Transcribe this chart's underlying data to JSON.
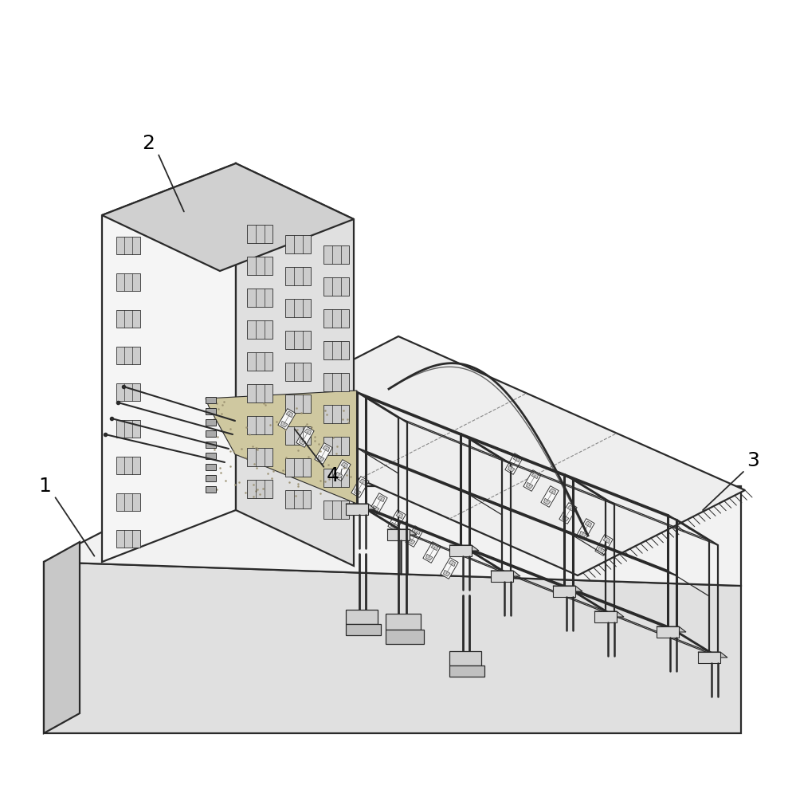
{
  "bg_color": "#ffffff",
  "line_color": "#2a2a2a",
  "fill_light": "#f2f2f2",
  "fill_mid": "#e0e0e0",
  "fill_dark": "#c8c8c8",
  "fill_soil": "#d0c8a0",
  "label_1": "1",
  "label_2": "2",
  "label_3": "3",
  "label_4": "4",
  "lw_main": 1.6,
  "lw_thin": 0.9,
  "lw_thick": 2.2,
  "label_fontsize": 18
}
